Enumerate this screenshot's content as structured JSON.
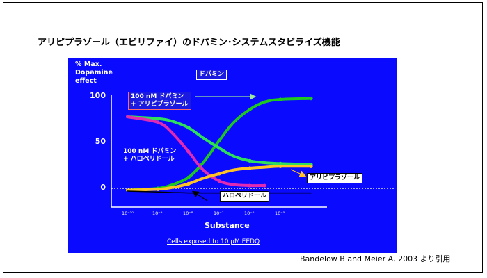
{
  "slide": {
    "title": "アリピプラゾール（エビリファイ）のドパミン･システムスタビライズ機能",
    "citation": "Bandelow B and Meier A, 2003 より引用"
  },
  "chart_data": {
    "type": "line",
    "ylabel": "% Max.\nDopamine\neffect",
    "xlabel": "Substance",
    "footnote": "Cells exposed to 10 μM EEDQ",
    "x_scale": "log",
    "xlim": [
      1e-10,
      0.001
    ],
    "ylim": [
      -20,
      120
    ],
    "yticks": [
      "100",
      "50",
      "0"
    ],
    "xticks": [
      "10⁻¹⁰",
      "10⁻⁹",
      "10⁻⁸",
      "10⁻⁷",
      "10⁻⁶",
      "10⁻⁵"
    ],
    "series": [
      {
        "name": "ドパミン",
        "color": "#1fc81f",
        "x": [
          1e-10,
          1e-09,
          3e-09,
          1e-08,
          3e-08,
          1e-07,
          3e-07,
          1e-06,
          3e-06,
          1e-05,
          0.0001
        ],
        "y": [
          -2,
          0,
          4,
          12,
          28,
          52,
          72,
          86,
          94,
          97,
          98
        ]
      },
      {
        "name": "100 nM ドパミン + アリピプラゾール",
        "color": "#2ee05a",
        "x": [
          1e-10,
          1e-09,
          3e-09,
          1e-08,
          3e-08,
          1e-07,
          3e-07,
          1e-06,
          3e-06,
          1e-05,
          0.0001
        ],
        "y": [
          78,
          76,
          73,
          66,
          55,
          44,
          35,
          30,
          28,
          27,
          26
        ]
      },
      {
        "name": "100 nM ドパミン + ハロペリドール",
        "color": "#e02ab4",
        "x": [
          1e-10,
          1e-09,
          3e-09,
          1e-08,
          3e-08,
          1e-07,
          3e-07,
          1e-06,
          3e-06
        ],
        "y": [
          78,
          72,
          60,
          40,
          20,
          8,
          4,
          3,
          3
        ]
      },
      {
        "name": "アリピプラゾール",
        "color": "#ffc423",
        "x": [
          1e-10,
          1e-09,
          3e-09,
          1e-08,
          3e-08,
          1e-07,
          3e-07,
          1e-06,
          3e-06,
          1e-05,
          0.0001
        ],
        "y": [
          -2,
          -1,
          1,
          5,
          11,
          16,
          20,
          22,
          23,
          24,
          24
        ]
      },
      {
        "name": "ハロペリドール",
        "color": "#000000",
        "x": [
          1e-10,
          1e-09,
          1e-08,
          1e-07,
          1e-06,
          1e-05,
          0.0001
        ],
        "y": [
          -3,
          -4,
          -5,
          -5,
          -5,
          -5,
          -5
        ]
      }
    ],
    "annotations": [
      "ドパミン",
      "100 nM ドパミン\n+ アリピプラゾール",
      "100 nM ドパミン\n+ ハロペリドール",
      "アリピプラゾール",
      "ハロペリドール"
    ]
  }
}
